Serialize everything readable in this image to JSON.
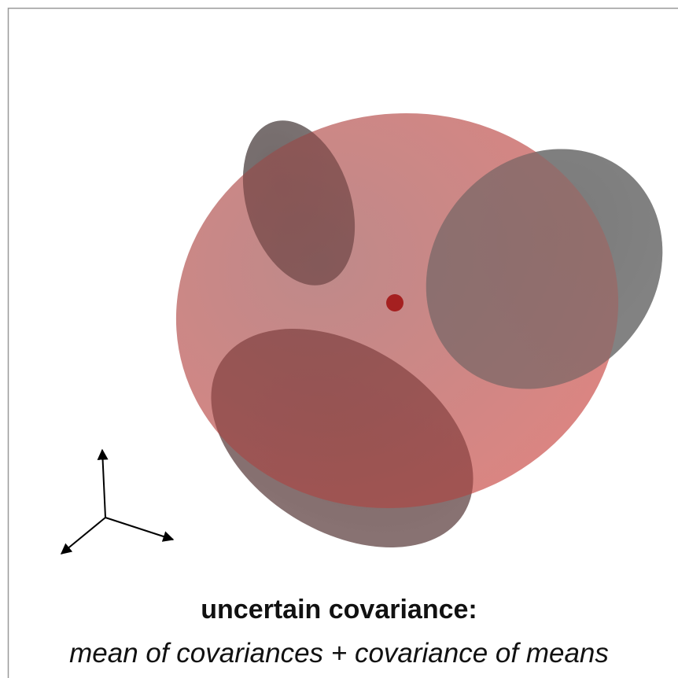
{
  "caption": {
    "title": "uncertain covariance:",
    "subtitle": "mean of covariances + covariance of means"
  }
}
